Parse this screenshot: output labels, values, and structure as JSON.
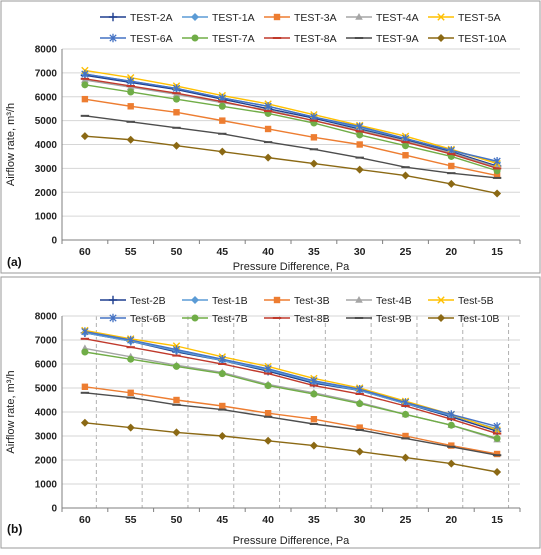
{
  "panels": [
    {
      "panel_label": "(a)",
      "chart_data": {
        "type": "line",
        "title": "",
        "xlabel": "Pressure Difference, Pa",
        "ylabel": "Airflow rate, m³/h",
        "categories": [
          "60",
          "55",
          "50",
          "45",
          "40",
          "35",
          "30",
          "25",
          "20",
          "15"
        ],
        "ylim": [
          0,
          8000
        ],
        "yticks": [
          0,
          1000,
          2000,
          3000,
          4000,
          5000,
          6000,
          7000,
          8000
        ],
        "grid": "major",
        "legend_position": "top",
        "series": [
          {
            "name": "TEST-2A",
            "color": "#1f3f8f",
            "marker": "plus",
            "values": [
              6900,
              6600,
              6300,
              5900,
              5500,
              5100,
              4650,
              4200,
              3700,
              3100
            ]
          },
          {
            "name": "TEST-1A",
            "color": "#5b9bd5",
            "marker": "diamond",
            "values": [
              6950,
              6650,
              6350,
              5950,
              5600,
              5150,
              4700,
              4250,
              3750,
              3250
            ]
          },
          {
            "name": "TEST-3A",
            "color": "#ed7d31",
            "marker": "square",
            "values": [
              5900,
              5600,
              5350,
              5000,
              4650,
              4300,
              4000,
              3550,
              3100,
              2700
            ]
          },
          {
            "name": "TEST-4A",
            "color": "#a5a5a5",
            "marker": "triangle",
            "values": [
              6700,
              6400,
              6100,
              5750,
              5450,
              5000,
              4600,
              4150,
              3650,
              3050
            ]
          },
          {
            "name": "TEST-5A",
            "color": "#ffc000",
            "marker": "x",
            "values": [
              7100,
              6800,
              6450,
              6050,
              5700,
              5250,
              4800,
              4350,
              3800,
              3200
            ]
          },
          {
            "name": "TEST-6A",
            "color": "#4472c4",
            "marker": "star",
            "values": [
              6950,
              6650,
              6350,
              5950,
              5600,
              5150,
              4750,
              4250,
              3750,
              3300
            ]
          },
          {
            "name": "TEST-7A",
            "color": "#70ad47",
            "marker": "circle",
            "values": [
              6500,
              6200,
              5900,
              5600,
              5300,
              4900,
              4400,
              3950,
              3500,
              2900
            ]
          },
          {
            "name": "TEST-8A",
            "color": "#c0392b",
            "marker": "dash",
            "values": [
              6750,
              6450,
              6150,
              5800,
              5400,
              5000,
              4550,
              4100,
              3600,
              3000
            ]
          },
          {
            "name": "TEST-9A",
            "color": "#4d4d4d",
            "marker": "dash",
            "values": [
              5200,
              4950,
              4700,
              4450,
              4100,
              3800,
              3450,
              3050,
              2800,
              2600
            ]
          },
          {
            "name": "TEST-10A",
            "color": "#8b6914",
            "marker": "diamond",
            "values": [
              4350,
              4200,
              3950,
              3700,
              3450,
              3200,
              2950,
              2700,
              2350,
              1950
            ]
          }
        ]
      }
    },
    {
      "panel_label": "(b)",
      "chart_data": {
        "type": "line",
        "title": "",
        "xlabel": "Pressure Difference, Pa",
        "ylabel": "Airflow rate, m³/h",
        "categories": [
          "60",
          "55",
          "50",
          "45",
          "40",
          "35",
          "30",
          "25",
          "20",
          "15"
        ],
        "ylim": [
          0,
          8000
        ],
        "yticks": [
          0,
          1000,
          2000,
          3000,
          4000,
          5000,
          6000,
          7000,
          8000
        ],
        "grid": "major",
        "legend_position": "top",
        "series": [
          {
            "name": "Test-2B",
            "color": "#1f3f8f",
            "marker": "plus",
            "values": [
              7300,
              6950,
              6500,
              6150,
              5700,
              5200,
              4900,
              4350,
              3800,
              3200
            ]
          },
          {
            "name": "Test-1B",
            "color": "#5b9bd5",
            "marker": "diamond",
            "values": [
              7300,
              6950,
              6550,
              6150,
              5750,
              5250,
              4900,
              4350,
              3850,
              3300
            ]
          },
          {
            "name": "Test-3B",
            "color": "#ed7d31",
            "marker": "square",
            "values": [
              5050,
              4800,
              4500,
              4250,
              3950,
              3700,
              3350,
              3000,
              2600,
              2250
            ]
          },
          {
            "name": "Test-4B",
            "color": "#a5a5a5",
            "marker": "triangle",
            "values": [
              6650,
              6300,
              5950,
              5650,
              5150,
              4800,
              4400,
              3900,
              3450,
              2850
            ]
          },
          {
            "name": "Test-5B",
            "color": "#ffc000",
            "marker": "x",
            "values": [
              7400,
              7050,
              6750,
              6300,
              5900,
              5400,
              5000,
              4450,
              3900,
              3250
            ]
          },
          {
            "name": "Test-6B",
            "color": "#4472c4",
            "marker": "star",
            "values": [
              7350,
              7000,
              6600,
              6200,
              5800,
              5300,
              4950,
              4400,
              3900,
              3400
            ]
          },
          {
            "name": "Test-7B",
            "color": "#70ad47",
            "marker": "circle",
            "values": [
              6500,
              6200,
              5900,
              5600,
              5100,
              4750,
              4350,
              3900,
              3450,
              2900
            ]
          },
          {
            "name": "Test-8B",
            "color": "#c0392b",
            "marker": "dash",
            "values": [
              7050,
              6700,
              6350,
              6000,
              5600,
              5100,
              4750,
              4250,
              3700,
              3100
            ]
          },
          {
            "name": "Test-9B",
            "color": "#4d4d4d",
            "marker": "dash",
            "values": [
              4800,
              4600,
              4300,
              4100,
              3800,
              3500,
              3250,
              2900,
              2550,
              2200
            ]
          },
          {
            "name": "Test-10B",
            "color": "#8b6914",
            "marker": "diamond",
            "values": [
              3550,
              3350,
              3150,
              3000,
              2800,
              2600,
              2350,
              2100,
              1850,
              1500
            ]
          }
        ]
      }
    }
  ]
}
